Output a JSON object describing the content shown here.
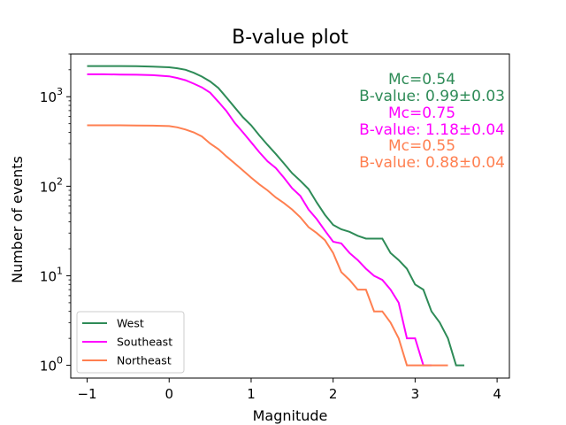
{
  "chart_data": {
    "type": "line",
    "title": "B-value plot",
    "xlabel": "Magnitude",
    "ylabel": "Number of events",
    "xlim": [
      -1.2,
      4.15
    ],
    "ylim": [
      0.72,
      3000
    ],
    "yscale": "log",
    "grid": false,
    "legend_position": "lower-left",
    "x_ticks": [
      {
        "value": -1,
        "label": "−1"
      },
      {
        "value": 0,
        "label": "0"
      },
      {
        "value": 1,
        "label": "1"
      },
      {
        "value": 2,
        "label": "2"
      },
      {
        "value": 3,
        "label": "3"
      },
      {
        "value": 4,
        "label": "4"
      }
    ],
    "y_ticks": [
      {
        "value": 1,
        "base": "10",
        "exp": "0"
      },
      {
        "value": 10,
        "base": "10",
        "exp": "1"
      },
      {
        "value": 100,
        "base": "10",
        "exp": "2"
      },
      {
        "value": 1000,
        "base": "10",
        "exp": "3"
      }
    ],
    "series": [
      {
        "name": "West",
        "color": "#2e8b57",
        "points": [
          [
            -1.0,
            2200
          ],
          [
            -0.8,
            2200
          ],
          [
            -0.6,
            2200
          ],
          [
            -0.4,
            2190
          ],
          [
            -0.2,
            2170
          ],
          [
            0.0,
            2130
          ],
          [
            0.1,
            2080
          ],
          [
            0.2,
            2000
          ],
          [
            0.3,
            1850
          ],
          [
            0.4,
            1680
          ],
          [
            0.5,
            1480
          ],
          [
            0.6,
            1250
          ],
          [
            0.7,
            980
          ],
          [
            0.8,
            760
          ],
          [
            0.9,
            590
          ],
          [
            1.0,
            480
          ],
          [
            1.1,
            370
          ],
          [
            1.2,
            290
          ],
          [
            1.3,
            230
          ],
          [
            1.4,
            180
          ],
          [
            1.5,
            140
          ],
          [
            1.6,
            115
          ],
          [
            1.7,
            93
          ],
          [
            1.8,
            66
          ],
          [
            1.9,
            48
          ],
          [
            2.0,
            37
          ],
          [
            2.1,
            33
          ],
          [
            2.2,
            31
          ],
          [
            2.3,
            28
          ],
          [
            2.4,
            26
          ],
          [
            2.5,
            26
          ],
          [
            2.6,
            26
          ],
          [
            2.7,
            18
          ],
          [
            2.8,
            15
          ],
          [
            2.9,
            12
          ],
          [
            3.0,
            8
          ],
          [
            3.1,
            7
          ],
          [
            3.2,
            4
          ],
          [
            3.3,
            3
          ],
          [
            3.4,
            2
          ],
          [
            3.5,
            1
          ],
          [
            3.6,
            1
          ]
        ]
      },
      {
        "name": "Southeast",
        "color": "#ff00ff",
        "points": [
          [
            -1.0,
            1780
          ],
          [
            -0.8,
            1780
          ],
          [
            -0.6,
            1770
          ],
          [
            -0.4,
            1760
          ],
          [
            -0.2,
            1740
          ],
          [
            0.0,
            1690
          ],
          [
            0.1,
            1620
          ],
          [
            0.2,
            1530
          ],
          [
            0.3,
            1400
          ],
          [
            0.4,
            1270
          ],
          [
            0.5,
            1110
          ],
          [
            0.6,
            880
          ],
          [
            0.7,
            690
          ],
          [
            0.8,
            510
          ],
          [
            0.9,
            400
          ],
          [
            1.0,
            310
          ],
          [
            1.1,
            240
          ],
          [
            1.2,
            190
          ],
          [
            1.3,
            160
          ],
          [
            1.4,
            125
          ],
          [
            1.5,
            95
          ],
          [
            1.6,
            78
          ],
          [
            1.7,
            55
          ],
          [
            1.8,
            43
          ],
          [
            1.9,
            32
          ],
          [
            2.0,
            24
          ],
          [
            2.1,
            23
          ],
          [
            2.2,
            18
          ],
          [
            2.3,
            15
          ],
          [
            2.4,
            12
          ],
          [
            2.5,
            10
          ],
          [
            2.6,
            9
          ],
          [
            2.7,
            7
          ],
          [
            2.8,
            5
          ],
          [
            2.9,
            2
          ],
          [
            3.0,
            2
          ],
          [
            3.1,
            1
          ],
          [
            3.2,
            1
          ]
        ]
      },
      {
        "name": "Northeast",
        "color": "#ff7f50",
        "points": [
          [
            -1.0,
            480
          ],
          [
            -0.8,
            480
          ],
          [
            -0.6,
            480
          ],
          [
            -0.4,
            478
          ],
          [
            -0.2,
            475
          ],
          [
            0.0,
            470
          ],
          [
            0.1,
            455
          ],
          [
            0.2,
            430
          ],
          [
            0.3,
            400
          ],
          [
            0.4,
            360
          ],
          [
            0.5,
            300
          ],
          [
            0.6,
            260
          ],
          [
            0.7,
            215
          ],
          [
            0.8,
            180
          ],
          [
            0.9,
            150
          ],
          [
            1.0,
            125
          ],
          [
            1.1,
            105
          ],
          [
            1.2,
            90
          ],
          [
            1.3,
            75
          ],
          [
            1.4,
            65
          ],
          [
            1.5,
            55
          ],
          [
            1.6,
            45
          ],
          [
            1.7,
            35
          ],
          [
            1.8,
            30
          ],
          [
            1.9,
            25
          ],
          [
            2.0,
            18
          ],
          [
            2.1,
            11
          ],
          [
            2.2,
            9
          ],
          [
            2.3,
            7
          ],
          [
            2.4,
            7
          ],
          [
            2.5,
            4
          ],
          [
            2.6,
            4
          ],
          [
            2.7,
            3
          ],
          [
            2.8,
            2
          ],
          [
            2.9,
            1
          ],
          [
            3.0,
            1
          ],
          [
            3.1,
            1
          ],
          [
            3.2,
            1
          ],
          [
            3.3,
            1
          ],
          [
            3.4,
            1
          ]
        ]
      }
    ],
    "annotations": [
      {
        "text": "Mc=0.54",
        "color": "#2e8b57"
      },
      {
        "text": "B-value: 0.99±0.03",
        "color": "#2e8b57"
      },
      {
        "text": "Mc=0.75",
        "color": "#ff00ff"
      },
      {
        "text": "B-value: 1.18±0.04",
        "color": "#ff00ff"
      },
      {
        "text": "Mc=0.55",
        "color": "#ff7f50"
      },
      {
        "text": "B-value: 0.88±0.04",
        "color": "#ff7f50"
      }
    ]
  }
}
